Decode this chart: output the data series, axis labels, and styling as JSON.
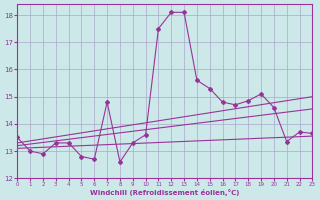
{
  "xlabel": "Windchill (Refroidissement éolien,°C)",
  "bg_color": "#cce8e8",
  "grid_color": "#aaaacc",
  "line_color": "#993399",
  "xlim": [
    0,
    23
  ],
  "ylim": [
    12,
    18.4
  ],
  "xticks": [
    0,
    1,
    2,
    3,
    4,
    5,
    6,
    7,
    8,
    9,
    10,
    11,
    12,
    13,
    14,
    15,
    16,
    17,
    18,
    19,
    20,
    21,
    22,
    23
  ],
  "yticks": [
    12,
    13,
    14,
    15,
    16,
    17,
    18
  ],
  "line1_x": [
    0,
    1,
    2,
    3,
    4,
    5,
    6,
    7,
    8,
    9,
    10,
    11,
    12,
    13,
    14,
    15,
    16,
    17,
    18,
    19,
    20,
    21,
    22,
    23
  ],
  "line1_y": [
    13.5,
    13.0,
    12.9,
    13.3,
    13.3,
    12.8,
    12.7,
    14.8,
    12.6,
    13.3,
    13.6,
    17.5,
    18.1,
    18.1,
    15.6,
    15.3,
    14.8,
    14.7,
    14.85,
    15.1,
    14.6,
    13.35,
    13.7,
    13.65
  ],
  "line2_x": [
    0,
    23
  ],
  "line2_y": [
    13.1,
    13.55
  ],
  "line3_x": [
    0,
    23
  ],
  "line3_y": [
    13.2,
    14.55
  ],
  "line4_x": [
    0,
    23
  ],
  "line4_y": [
    13.3,
    15.0
  ]
}
